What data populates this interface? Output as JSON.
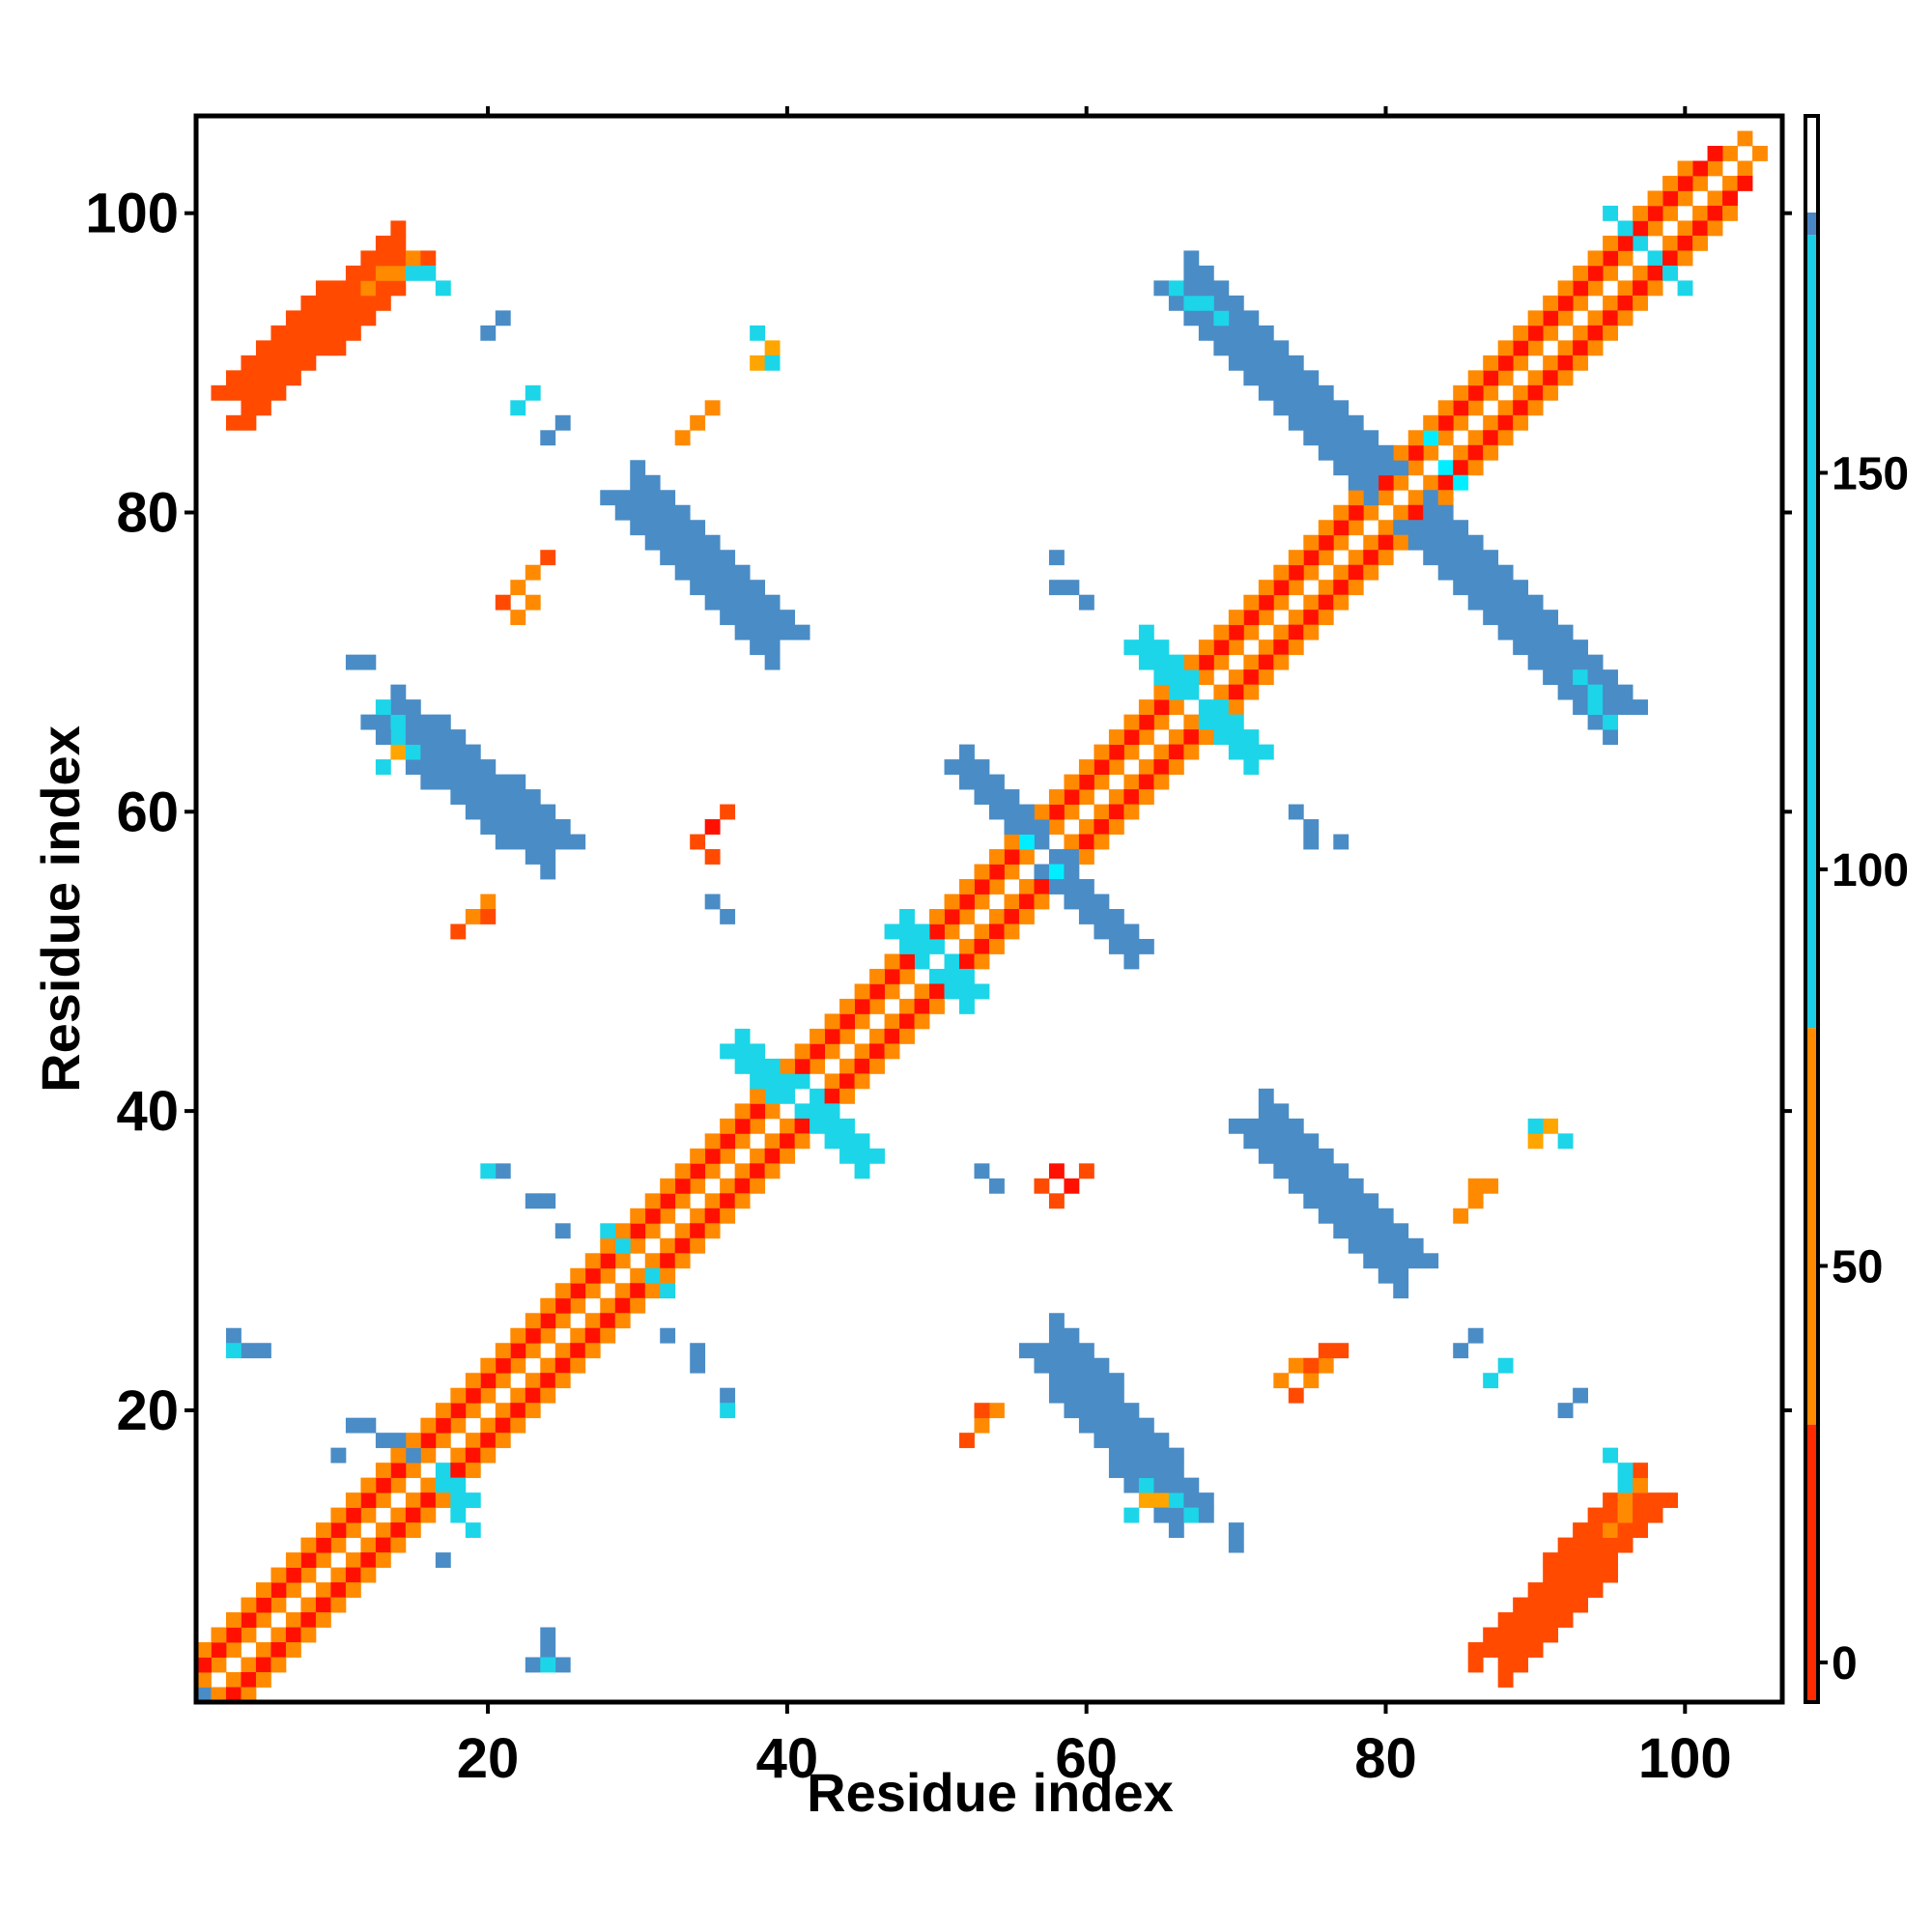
{
  "chart_data": {
    "type": "heatmap",
    "title": "",
    "xlabel": "Residue index",
    "ylabel": "Residue index",
    "xlim": [
      0.5,
      106.5
    ],
    "ylim": [
      0.5,
      106.5
    ],
    "x_ticks": [
      20,
      40,
      60,
      80,
      100
    ],
    "y_ticks": [
      20,
      40,
      60,
      80,
      100
    ],
    "x_tick_labels": [
      "20",
      "40",
      "60",
      "80",
      "100"
    ],
    "y_tick_labels": [
      "20",
      "40",
      "60",
      "80",
      "100"
    ],
    "grid": false,
    "legend": "colorbar-right",
    "colorbar": {
      "range": [
        -5,
        195
      ],
      "ticks": [
        0,
        50,
        100,
        150
      ],
      "tick_labels": [
        "0",
        "50",
        "100",
        "150"
      ],
      "stops": [
        {
          "min": -5,
          "max": 30,
          "color": "#ff2a00"
        },
        {
          "min": 30,
          "max": 80,
          "color": "#ff8a00"
        },
        {
          "min": 80,
          "max": 180,
          "color": "#1ccde6"
        },
        {
          "min": 180,
          "max": 195,
          "color": "#4a86c4"
        }
      ]
    },
    "palette": {
      "red": "#ff1000",
      "red_orange": "#ff4a00",
      "orange": "#ff8a00",
      "amber": "#ffa500",
      "cyan": "#1cd5e8",
      "light_cyan": "#00eeff",
      "steel_blue": "#4a8cc6"
    },
    "segments": [
      {
        "from": [
          1,
          1
        ],
        "to": [
          106,
          106
        ],
        "width": 0,
        "color": "steel_blue"
      },
      {
        "from": [
          2,
          1
        ],
        "to": [
          105,
          104
        ],
        "width": 0,
        "color": "orange"
      },
      {
        "from": [
          1,
          2
        ],
        "to": [
          104,
          105
        ],
        "width": 0,
        "color": "orange"
      },
      {
        "from": [
          3,
          1
        ],
        "to": [
          104,
          102
        ],
        "width": 0,
        "color": "red"
      },
      {
        "from": [
          1,
          3
        ],
        "to": [
          102,
          104
        ],
        "width": 0,
        "color": "red"
      },
      {
        "from": [
          4,
          1
        ],
        "to": [
          103,
          100
        ],
        "width": 0,
        "color": "orange"
      },
      {
        "from": [
          1,
          4
        ],
        "to": [
          100,
          103
        ],
        "width": 0,
        "color": "orange"
      },
      {
        "from": [
          14,
          18
        ],
        "to": [
          19,
          14
        ],
        "width": 0,
        "color": "cyan"
      },
      {
        "from": [
          11,
          19
        ],
        "to": [
          15,
          17
        ],
        "width": 0,
        "color": "steel_blue"
      },
      {
        "from": [
          16,
          16
        ],
        "to": [
          19,
          12
        ],
        "width": 0,
        "color": "cyan"
      },
      {
        "from": [
          28,
          32
        ],
        "to": [
          32,
          28
        ],
        "width": 0,
        "color": "cyan"
      },
      {
        "from": [
          37,
          44
        ],
        "to": [
          45,
          37
        ],
        "width": 1,
        "color": "cyan"
      },
      {
        "from": [
          48,
          52
        ],
        "to": [
          52,
          48
        ],
        "width": 1,
        "color": "cyan"
      },
      {
        "from": [
          52,
          63
        ],
        "to": [
          63,
          51
        ],
        "width": 1,
        "color": "steel_blue"
      },
      {
        "from": [
          56,
          58
        ],
        "to": [
          58,
          56
        ],
        "width": 0,
        "color": "light_cyan"
      },
      {
        "from": [
          64,
          71
        ],
        "to": [
          71,
          64
        ],
        "width": 1,
        "color": "cyan"
      },
      {
        "from": [
          83,
          85
        ],
        "to": [
          85,
          82
        ],
        "width": 0,
        "color": "light_cyan"
      },
      {
        "from": [
          79,
          81
        ],
        "to": [
          81,
          79
        ],
        "width": 0,
        "color": "light_cyan"
      },
      {
        "from": [
          95,
          100
        ],
        "to": [
          100,
          95
        ],
        "width": 0,
        "color": "cyan"
      },
      {
        "from": [
          79,
          83
        ],
        "to": [
          67,
          95
        ],
        "width": 2,
        "color": "steel_blue"
      },
      {
        "from": [
          83,
          79
        ],
        "to": [
          95,
          67
        ],
        "width": 2,
        "color": "steel_blue"
      },
      {
        "from": [
          69,
          93
        ],
        "to": [
          66,
          95
        ],
        "width": 0,
        "color": "cyan"
      },
      {
        "from": [
          93,
          69
        ],
        "to": [
          95,
          66
        ],
        "width": 0,
        "color": "cyan"
      },
      {
        "from": [
          30,
          81
        ],
        "to": [
          39,
          72
        ],
        "width": 2,
        "color": "steel_blue"
      },
      {
        "from": [
          81,
          30
        ],
        "to": [
          72,
          39
        ],
        "width": 2,
        "color": "steel_blue"
      },
      {
        "from": [
          14,
          66
        ],
        "to": [
          24,
          58
        ],
        "width": 2,
        "color": "steel_blue"
      },
      {
        "from": [
          66,
          14
        ],
        "to": [
          58,
          24
        ],
        "width": 2,
        "color": "steel_blue"
      },
      {
        "from": [
          13,
          67
        ],
        "to": [
          15,
          64
        ],
        "width": 0,
        "color": "cyan"
      },
      {
        "from": [
          67,
          13
        ],
        "to": [
          64,
          15
        ],
        "width": 0,
        "color": "cyan"
      },
      {
        "from": [
          4,
          88
        ],
        "to": [
          14,
          97
        ],
        "width": 2,
        "color": "red_orange"
      },
      {
        "from": [
          88,
          4
        ],
        "to": [
          97,
          14
        ],
        "width": 2,
        "color": "red_orange"
      },
      {
        "from": [
          12,
          95
        ],
        "to": [
          15,
          97
        ],
        "width": 0,
        "color": "orange"
      },
      {
        "from": [
          95,
          12
        ],
        "to": [
          97,
          15
        ],
        "width": 0,
        "color": "orange"
      },
      {
        "from": [
          15,
          96
        ],
        "to": [
          17,
          95
        ],
        "width": 0,
        "color": "cyan"
      },
      {
        "from": [
          96,
          15
        ],
        "to": [
          95,
          17
        ],
        "width": 0,
        "color": "cyan"
      }
    ],
    "cells": [
      {
        "x": 3,
        "y": 86,
        "color": "red_orange"
      },
      {
        "x": 86,
        "y": 3,
        "color": "red_orange"
      },
      {
        "x": 21,
        "y": 93,
        "color": "steel_blue"
      },
      {
        "x": 93,
        "y": 21,
        "color": "steel_blue"
      },
      {
        "x": 23,
        "y": 88,
        "color": "cyan"
      },
      {
        "x": 88,
        "y": 23,
        "color": "cyan"
      },
      {
        "x": 25,
        "y": 86,
        "color": "steel_blue"
      },
      {
        "x": 86,
        "y": 25,
        "color": "steel_blue"
      },
      {
        "x": 38,
        "y": 92,
        "color": "cyan"
      },
      {
        "x": 39,
        "y": 91,
        "color": "amber"
      },
      {
        "x": 38,
        "y": 90,
        "color": "amber"
      },
      {
        "x": 39,
        "y": 90,
        "color": "cyan"
      },
      {
        "x": 92,
        "y": 38,
        "color": "cyan"
      },
      {
        "x": 91,
        "y": 39,
        "color": "amber"
      },
      {
        "x": 90,
        "y": 38,
        "color": "amber"
      },
      {
        "x": 90,
        "y": 39,
        "color": "cyan"
      },
      {
        "x": 33,
        "y": 85,
        "color": "orange"
      },
      {
        "x": 34,
        "y": 86,
        "color": "orange"
      },
      {
        "x": 35,
        "y": 87,
        "color": "orange"
      },
      {
        "x": 85,
        "y": 33,
        "color": "orange"
      },
      {
        "x": 86,
        "y": 34,
        "color": "orange"
      },
      {
        "x": 87,
        "y": 35,
        "color": "orange"
      },
      {
        "x": 22,
        "y": 75,
        "color": "orange"
      },
      {
        "x": 23,
        "y": 76,
        "color": "orange"
      },
      {
        "x": 24,
        "y": 77,
        "color": "red_orange"
      },
      {
        "x": 23,
        "y": 74,
        "color": "orange"
      },
      {
        "x": 22,
        "y": 73,
        "color": "orange"
      },
      {
        "x": 75,
        "y": 22,
        "color": "orange"
      },
      {
        "x": 76,
        "y": 23,
        "color": "orange"
      },
      {
        "x": 77,
        "y": 24,
        "color": "red_orange"
      },
      {
        "x": 74,
        "y": 23,
        "color": "orange"
      },
      {
        "x": 73,
        "y": 22,
        "color": "orange"
      },
      {
        "x": 34,
        "y": 58,
        "color": "red_orange"
      },
      {
        "x": 35,
        "y": 59,
        "color": "red"
      },
      {
        "x": 36,
        "y": 60,
        "color": "red_orange"
      },
      {
        "x": 58,
        "y": 34,
        "color": "red_orange"
      },
      {
        "x": 59,
        "y": 35,
        "color": "red"
      },
      {
        "x": 60,
        "y": 36,
        "color": "red_orange"
      },
      {
        "x": 19,
        "y": 53,
        "color": "orange"
      },
      {
        "x": 20,
        "y": 54,
        "color": "orange"
      },
      {
        "x": 53,
        "y": 19,
        "color": "orange"
      },
      {
        "x": 54,
        "y": 20,
        "color": "orange"
      },
      {
        "x": 35,
        "y": 54,
        "color": "steel_blue"
      },
      {
        "x": 36,
        "y": 53,
        "color": "steel_blue"
      },
      {
        "x": 54,
        "y": 35,
        "color": "steel_blue"
      },
      {
        "x": 53,
        "y": 36,
        "color": "steel_blue"
      },
      {
        "x": 11,
        "y": 70,
        "color": "steel_blue"
      },
      {
        "x": 12,
        "y": 70,
        "color": "steel_blue"
      },
      {
        "x": 70,
        "y": 11,
        "color": "steel_blue"
      },
      {
        "x": 70,
        "y": 12,
        "color": "steel_blue"
      },
      {
        "x": 58,
        "y": 77,
        "color": "steel_blue"
      },
      {
        "x": 58,
        "y": 75,
        "color": "steel_blue"
      },
      {
        "x": 59,
        "y": 75,
        "color": "steel_blue"
      },
      {
        "x": 77,
        "y": 58,
        "color": "steel_blue"
      },
      {
        "x": 75,
        "y": 58,
        "color": "steel_blue"
      },
      {
        "x": 75,
        "y": 59,
        "color": "steel_blue"
      },
      {
        "x": 74,
        "y": 60,
        "color": "steel_blue"
      },
      {
        "x": 75,
        "y": 58,
        "color": "steel_blue"
      },
      {
        "x": 77,
        "y": 58,
        "color": "steel_blue"
      },
      {
        "x": 60,
        "y": 74,
        "color": "steel_blue"
      },
      {
        "x": 21,
        "y": 36,
        "color": "steel_blue"
      },
      {
        "x": 36,
        "y": 21,
        "color": "steel_blue"
      },
      {
        "x": 23,
        "y": 34,
        "color": "steel_blue"
      },
      {
        "x": 24,
        "y": 34,
        "color": "steel_blue"
      },
      {
        "x": 34,
        "y": 23,
        "color": "steel_blue"
      },
      {
        "x": 34,
        "y": 24,
        "color": "steel_blue"
      },
      {
        "x": 25,
        "y": 32,
        "color": "steel_blue"
      },
      {
        "x": 32,
        "y": 25,
        "color": "steel_blue"
      },
      {
        "x": 3,
        "y": 25,
        "color": "steel_blue"
      },
      {
        "x": 5,
        "y": 24,
        "color": "steel_blue"
      },
      {
        "x": 25,
        "y": 3,
        "color": "steel_blue"
      },
      {
        "x": 24,
        "y": 5,
        "color": "steel_blue"
      },
      {
        "x": 24,
        "y": 4,
        "color": "steel_blue"
      },
      {
        "x": 4,
        "y": 24,
        "color": "steel_blue"
      },
      {
        "x": 34,
        "y": 24,
        "color": "steel_blue"
      },
      {
        "x": 36,
        "y": 20,
        "color": "cyan"
      },
      {
        "x": 20,
        "y": 36,
        "color": "cyan"
      },
      {
        "x": 23,
        "y": 3,
        "color": "steel_blue"
      },
      {
        "x": 24,
        "y": 3,
        "color": "cyan"
      },
      {
        "x": 3,
        "y": 24,
        "color": "cyan"
      },
      {
        "x": 17,
        "y": 10,
        "color": "steel_blue"
      },
      {
        "x": 10,
        "y": 17,
        "color": "steel_blue"
      },
      {
        "x": 57,
        "y": 35,
        "color": "red_orange"
      },
      {
        "x": 58,
        "y": 36,
        "color": "red"
      },
      {
        "x": 59,
        "y": 35,
        "color": "red"
      },
      {
        "x": 35,
        "y": 57,
        "color": "red_orange"
      },
      {
        "x": 52,
        "y": 18,
        "color": "red_orange"
      },
      {
        "x": 53,
        "y": 20,
        "color": "red_orange"
      },
      {
        "x": 18,
        "y": 52,
        "color": "red_orange"
      },
      {
        "x": 20,
        "y": 53,
        "color": "red_orange"
      },
      {
        "x": 74,
        "y": 21,
        "color": "red_orange"
      },
      {
        "x": 75,
        "y": 23,
        "color": "red_orange"
      },
      {
        "x": 76,
        "y": 24,
        "color": "red_orange"
      },
      {
        "x": 21,
        "y": 74,
        "color": "red_orange"
      },
      {
        "x": 85,
        "y": 33,
        "color": "orange"
      },
      {
        "x": 86,
        "y": 35,
        "color": "orange"
      },
      {
        "x": 33,
        "y": 85,
        "color": "orange"
      },
      {
        "x": 90,
        "y": 38,
        "color": "amber"
      },
      {
        "x": 91,
        "y": 39,
        "color": "amber"
      },
      {
        "x": 92,
        "y": 38,
        "color": "cyan"
      },
      {
        "x": 38,
        "y": 90,
        "color": "amber"
      },
      {
        "x": 85,
        "y": 24,
        "color": "steel_blue"
      },
      {
        "x": 87,
        "y": 22,
        "color": "cyan"
      },
      {
        "x": 92,
        "y": 20,
        "color": "steel_blue"
      },
      {
        "x": 24,
        "y": 85,
        "color": "steel_blue"
      },
      {
        "x": 22,
        "y": 87,
        "color": "cyan"
      },
      {
        "x": 20,
        "y": 92,
        "color": "steel_blue"
      },
      {
        "x": 86,
        "y": 3,
        "color": "red_orange"
      },
      {
        "x": 88,
        "y": 4,
        "color": "red_orange"
      },
      {
        "x": 70,
        "y": 11,
        "color": "steel_blue"
      },
      {
        "x": 70,
        "y": 12,
        "color": "steel_blue"
      },
      {
        "x": 11,
        "y": 70,
        "color": "steel_blue"
      },
      {
        "x": 68,
        "y": 13,
        "color": "steel_blue"
      },
      {
        "x": 63,
        "y": 13,
        "color": "cyan"
      },
      {
        "x": 64,
        "y": 14,
        "color": "amber"
      },
      {
        "x": 65,
        "y": 14,
        "color": "amber"
      },
      {
        "x": 13,
        "y": 63,
        "color": "cyan"
      },
      {
        "x": 14,
        "y": 64,
        "color": "amber"
      }
    ]
  }
}
